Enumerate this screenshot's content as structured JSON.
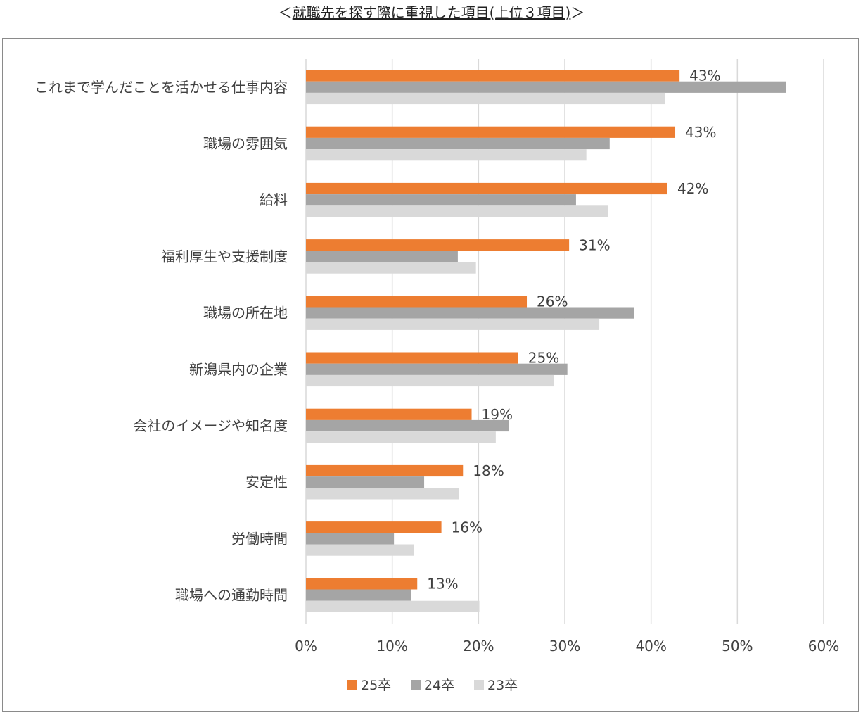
{
  "header": {
    "prefix": "＜",
    "title": "就職先を探す際に重視した項目(上位３項目)",
    "suffix": "＞"
  },
  "chart_data": {
    "type": "bar",
    "orientation": "horizontal",
    "categories": [
      "これまで学んだことを活かせる仕事内容",
      "職場の雰囲気",
      "給料",
      "福利厚生や支援制度",
      "職場の所在地",
      "新潟県内の企業",
      "会社のイメージや知名度",
      "安定性",
      "労働時間",
      "職場への通勤時間"
    ],
    "series": [
      {
        "name": "25卒",
        "color": "#ED7D31",
        "values": [
          43.3,
          42.8,
          41.9,
          30.5,
          25.6,
          24.6,
          19.2,
          18.2,
          15.7,
          12.9
        ],
        "labels": [
          "43%",
          "43%",
          "42%",
          "31%",
          "26%",
          "25%",
          "19%",
          "18%",
          "16%",
          "13%"
        ]
      },
      {
        "name": "24卒",
        "color": "#A5A5A5",
        "values": [
          55.6,
          35.2,
          31.3,
          17.6,
          38.0,
          30.3,
          23.5,
          13.7,
          10.2,
          12.2
        ],
        "labels": []
      },
      {
        "name": "23卒",
        "color": "#D9D9D9",
        "values": [
          41.6,
          32.5,
          35.0,
          19.7,
          34.0,
          28.7,
          22.0,
          17.7,
          12.5,
          20.1
        ],
        "labels": []
      }
    ],
    "xlim": [
      0,
      60
    ],
    "xticks": [
      "0%",
      "10%",
      "20%",
      "30%",
      "40%",
      "50%",
      "60%"
    ],
    "grid": true,
    "legend_position": "bottom"
  }
}
